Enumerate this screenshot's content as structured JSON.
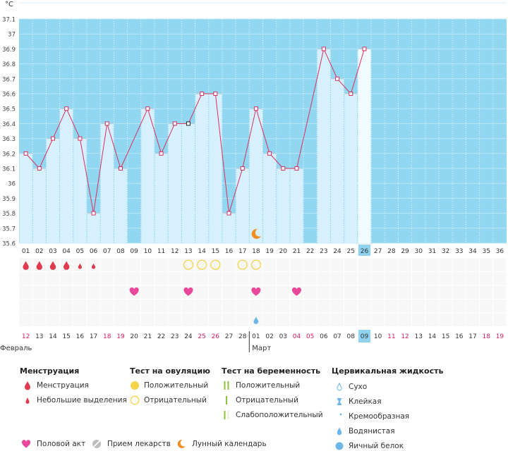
{
  "chart_data": {
    "type": "bar",
    "unit_label": "°C",
    "ylim": [
      35.6,
      37.1
    ],
    "yticks": [
      35.6,
      35.7,
      35.8,
      35.9,
      36,
      36.1,
      36.2,
      36.3,
      36.4,
      36.5,
      36.6,
      36.7,
      36.8,
      36.9,
      37,
      37.1
    ],
    "ytick_labels": [
      "35.6",
      "35.7",
      "35.8",
      "35.9",
      "36",
      "36.1",
      "36.2",
      "36.3",
      "36.4",
      "36.5",
      "36.6",
      "36.7",
      "36.8",
      "36.9",
      "37",
      "37.1"
    ],
    "cycle_days": [
      "01",
      "02",
      "03",
      "04",
      "05",
      "06",
      "07",
      "08",
      "09",
      "10",
      "11",
      "12",
      "13",
      "14",
      "15",
      "16",
      "17",
      "18",
      "19",
      "20",
      "21",
      "22",
      "23",
      "24",
      "25",
      "26",
      "27",
      "28",
      "29",
      "30",
      "31",
      "32",
      "33",
      "34",
      "35",
      "36"
    ],
    "temperatures": [
      36.2,
      36.1,
      36.3,
      36.5,
      36.3,
      35.8,
      36.4,
      36.1,
      null,
      36.5,
      36.2,
      36.4,
      36.4,
      36.6,
      36.6,
      35.8,
      36.1,
      36.5,
      36.2,
      36.1,
      36.1,
      null,
      36.9,
      36.7,
      36.6,
      36.9,
      null,
      null,
      null,
      null,
      null,
      null,
      null,
      null,
      null,
      null
    ],
    "marker_colors": {
      "12": "#222222",
      "21": "#222222"
    },
    "dashed_segments": [
      [
        8,
        10
      ],
      [
        21,
        23
      ]
    ],
    "current_day_index": 25,
    "moon_day_index": 17,
    "dates": [
      "12",
      "13",
      "14",
      "15",
      "16",
      "17",
      "18",
      "19",
      "20",
      "21",
      "22",
      "23",
      "24",
      "25",
      "26",
      "27",
      "28",
      "01",
      "02",
      "03",
      "04",
      "05",
      "06",
      "07",
      "08",
      "09",
      "10",
      "11",
      "12",
      "13",
      "14",
      "15",
      "16",
      "17",
      "18",
      "19"
    ],
    "weekend_flags": [
      true,
      false,
      false,
      false,
      false,
      false,
      true,
      true,
      false,
      false,
      false,
      false,
      false,
      true,
      true,
      false,
      false,
      false,
      false,
      false,
      true,
      true,
      false,
      false,
      false,
      false,
      false,
      true,
      true,
      false,
      false,
      false,
      false,
      false,
      true,
      true
    ],
    "month_labels": [
      {
        "label": "Февраль",
        "start_index": 0
      },
      {
        "label": "Март",
        "start_index": 17
      }
    ],
    "symptoms": {
      "menstruation": [
        1,
        2,
        3,
        4
      ],
      "spotting": [
        5,
        6
      ],
      "ovulation_negative": [
        13,
        14,
        15,
        17,
        18
      ],
      "intercourse": [
        9,
        13,
        18,
        21
      ],
      "cervical_watery": [
        18
      ]
    },
    "colors": {
      "sky": "#92d7f1",
      "bar": "#d6f0fd",
      "bar_current": "#f1fafe",
      "line": "#d8305c",
      "blood": "#e23a4e",
      "heart": "#e8479a",
      "ovulation": "#f5d34a",
      "moon": "#f08e1f",
      "water": "#6cb6ea",
      "pregnancy": "#8fc23c",
      "current_day_box": "#8fd3f0",
      "weekend_text": "#d81c5c"
    }
  },
  "legend": {
    "menstruation": {
      "title": "Менструация",
      "items": [
        "Менструация",
        "Небольшие выделения"
      ]
    },
    "ovulation_test": {
      "title": "Тест на овуляцию",
      "items": [
        "Положительный",
        "Отрицательный"
      ]
    },
    "pregnancy_test": {
      "title": "Тест на беременность",
      "items": [
        "Положительный",
        "Отрицательный",
        "Слабоположительный"
      ]
    },
    "cervical": {
      "title": "Цервикальная жидкость",
      "items": [
        "Сухо",
        "Клейкая",
        "Кремообразная",
        "Водянистая",
        "Яичный белок"
      ]
    },
    "bottom": [
      "Половой акт",
      "Прием лекарств",
      "Лунный календарь"
    ]
  }
}
